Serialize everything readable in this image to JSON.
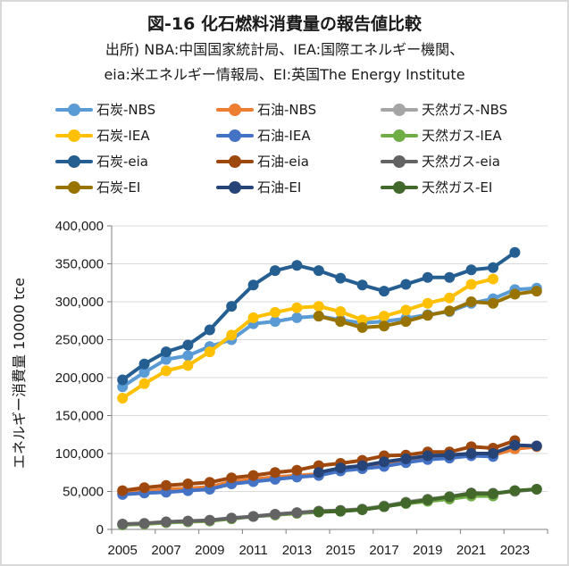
{
  "title": "図-16  化石燃料消費量の報告値比較",
  "subtitle_lines": [
    "出所) NBA:中国国家統計局、IEA:国際エネルギー機関、",
    "eia:米エネルギー情報局、EI:英国The Energy Institute"
  ],
  "chart_data": {
    "type": "line",
    "title": "図-16  化石燃料消費量の報告値比較",
    "xlabel": "",
    "ylabel": "エネルギー消費量  10000 tce",
    "x": [
      2005,
      2006,
      2007,
      2008,
      2009,
      2010,
      2011,
      2012,
      2013,
      2014,
      2015,
      2016,
      2017,
      2018,
      2019,
      2020,
      2021,
      2022,
      2023,
      2024
    ],
    "x_tick_labels": [
      "2005",
      "2007",
      "2009",
      "2011",
      "2013",
      "2015",
      "2017",
      "2019",
      "2021",
      "2023"
    ],
    "ylim": [
      0,
      400000
    ],
    "y_ticks": [
      0,
      50000,
      100000,
      150000,
      200000,
      250000,
      300000,
      350000,
      400000
    ],
    "y_tick_labels": [
      "0",
      "50,000",
      "100,000",
      "150,000",
      "200,000",
      "250,000",
      "300,000",
      "350,000",
      "400,000"
    ],
    "grid": true,
    "legend_position": "top",
    "series": [
      {
        "name": "石炭-NBS",
        "color": "#5B9BD5",
        "start": 2005,
        "values": [
          188000,
          207000,
          224000,
          229000,
          241000,
          250000,
          271000,
          274000,
          279000,
          281000,
          276000,
          272000,
          274000,
          278000,
          283000,
          287000,
          298000,
          304000,
          316000,
          318000
        ]
      },
      {
        "name": "石油-NBS",
        "color": "#ED7D31",
        "start": 2005,
        "values": [
          48000,
          50000,
          53000,
          54000,
          56000,
          63000,
          66000,
          69000,
          71000,
          73000,
          79000,
          82000,
          86000,
          90000,
          94000,
          95000,
          98000,
          98000,
          106000,
          109000
        ]
      },
      {
        "name": "天然ガス-NBS",
        "color": "#A5A5A5",
        "start": 2005,
        "values": [
          6000,
          7000,
          9000,
          10000,
          12000,
          14000,
          17000,
          19000,
          22000,
          24000,
          25000,
          27000,
          31000,
          36000,
          40000,
          43000,
          48000,
          48000,
          50000,
          53000
        ]
      },
      {
        "name": "石炭-IEA",
        "color": "#FFC000",
        "start": 2005,
        "values": [
          173000,
          192000,
          209000,
          216000,
          234000,
          256000,
          279000,
          286000,
          292000,
          294000,
          287000,
          276000,
          281000,
          289000,
          298000,
          305000,
          323000,
          330000
        ]
      },
      {
        "name": "石油-IEA",
        "color": "#4472C4",
        "start": 2005,
        "values": [
          46000,
          48000,
          49000,
          51000,
          53000,
          60000,
          63000,
          66000,
          69000,
          71000,
          77000,
          80000,
          83000,
          88000,
          92000,
          94000,
          97000,
          96000
        ]
      },
      {
        "name": "天然ガス-IEA",
        "color": "#70AD47",
        "start": 2005,
        "values": [
          6000,
          7000,
          9000,
          10000,
          11000,
          14000,
          17000,
          19000,
          21000,
          23000,
          24000,
          26000,
          30000,
          34000,
          37000,
          40000,
          44000,
          44000
        ]
      },
      {
        "name": "石炭-eia",
        "color": "#255E91",
        "start": 2005,
        "values": [
          197000,
          218000,
          234000,
          243000,
          263000,
          294000,
          322000,
          341000,
          348000,
          341000,
          331000,
          322000,
          314000,
          323000,
          332000,
          332000,
          342000,
          345000,
          365000
        ]
      },
      {
        "name": "石油-eia",
        "color": "#9E480E",
        "start": 2005,
        "values": [
          51000,
          55000,
          58000,
          60000,
          62000,
          68000,
          71000,
          75000,
          78000,
          84000,
          87000,
          91000,
          97000,
          98000,
          102000,
          102000,
          109000,
          107000,
          117000
        ]
      },
      {
        "name": "天然ガス-eia",
        "color": "#636363",
        "start": 2005,
        "values": [
          7000,
          8000,
          10000,
          11000,
          12000,
          15000,
          17000,
          20000,
          22000,
          24000,
          25000,
          26000,
          30000,
          35000,
          39000,
          43000,
          48000,
          47000,
          51000
        ]
      },
      {
        "name": "石炭-EI",
        "color": "#997300",
        "start": 2014,
        "values": [
          281000,
          274000,
          266000,
          268000,
          274000,
          282000,
          288000,
          300000,
          298000,
          310000,
          314000
        ]
      },
      {
        "name": "石油-EI",
        "color": "#264478",
        "start": 2014,
        "values": [
          75000,
          81000,
          84000,
          89000,
          93000,
          97000,
          98000,
          100000,
          100000,
          111000,
          110000
        ]
      },
      {
        "name": "天然ガス-EI",
        "color": "#43682B",
        "start": 2014,
        "values": [
          23000,
          24000,
          26000,
          30000,
          35000,
          39000,
          43000,
          47000,
          47000,
          51000,
          53000
        ]
      }
    ]
  },
  "draw_order": [
    2,
    5,
    8,
    11,
    1,
    4,
    7,
    10,
    0,
    3,
    6,
    9
  ]
}
